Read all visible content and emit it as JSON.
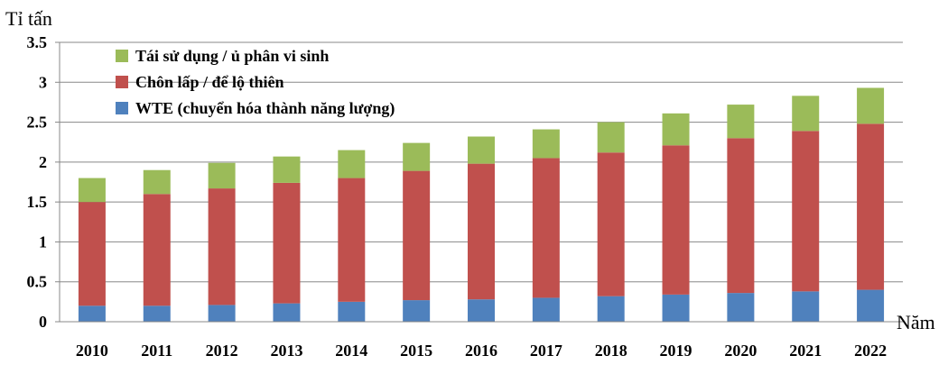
{
  "chart_data": {
    "type": "bar",
    "stacked": true,
    "title": "",
    "ylabel": "Tỉ tấn",
    "xlabel": "Năm",
    "ylim": [
      0,
      3.5
    ],
    "yticks": [
      "0",
      "0.5",
      "1",
      "1.5",
      "2",
      "2.5",
      "3",
      "3.5"
    ],
    "grid": true,
    "legend_position": "top-left",
    "categories": [
      "2010",
      "2011",
      "2012",
      "2013",
      "2014",
      "2015",
      "2016",
      "2017",
      "2018",
      "2019",
      "2020",
      "2021",
      "2022"
    ],
    "series": [
      {
        "name": "WTE (chuyển hóa thành năng lượng)",
        "color": "#4f81bd",
        "values": [
          0.2,
          0.2,
          0.21,
          0.23,
          0.25,
          0.27,
          0.28,
          0.3,
          0.32,
          0.34,
          0.36,
          0.38,
          0.4
        ]
      },
      {
        "name": "Chôn lấp / để lộ thiên",
        "color": "#c0504d",
        "values": [
          1.3,
          1.4,
          1.46,
          1.51,
          1.55,
          1.62,
          1.7,
          1.75,
          1.8,
          1.87,
          1.94,
          2.01,
          2.08
        ]
      },
      {
        "name": "Tái sử dụng / ủ phân vi sinh",
        "color": "#9bbb59",
        "values": [
          0.3,
          0.3,
          0.32,
          0.33,
          0.35,
          0.35,
          0.34,
          0.36,
          0.38,
          0.4,
          0.42,
          0.44,
          0.45
        ]
      }
    ],
    "legend_order": [
      2,
      1,
      0
    ]
  }
}
